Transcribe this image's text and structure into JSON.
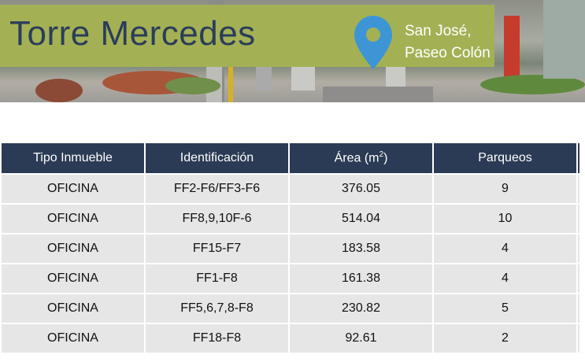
{
  "header": {
    "title": "Torre Mercedes",
    "location_line1": "San José,",
    "location_line2": "Paseo Colón",
    "pin_icon": "map-pin-icon",
    "colors": {
      "banner_box": "#a3b154",
      "title": "#2b3d5a",
      "pin": "#3d95d6"
    }
  },
  "table": {
    "headers": [
      "Tipo Inmueble",
      "Identificación",
      "Área (m",
      "Parqueos"
    ],
    "area_superscript": "2",
    "area_suffix": ")",
    "rows": [
      [
        "OFICINA",
        "FF2-F6/FF3-F6",
        "376.05",
        "9"
      ],
      [
        "OFICINA",
        "FF8,9,10F-6",
        "514.04",
        "10"
      ],
      [
        "OFICINA",
        "FF15-F7",
        "183.58",
        "4"
      ],
      [
        "OFICINA",
        "FF1-F8",
        "161.38",
        "4"
      ],
      [
        "OFICINA",
        "FF5,6,7,8-F8",
        "230.82",
        "5"
      ],
      [
        "OFICINA",
        "FF18-F8",
        "92.61",
        "2"
      ]
    ],
    "colors": {
      "header_bg": "#2b3b55",
      "row_bg": "#e6e6e6"
    }
  }
}
